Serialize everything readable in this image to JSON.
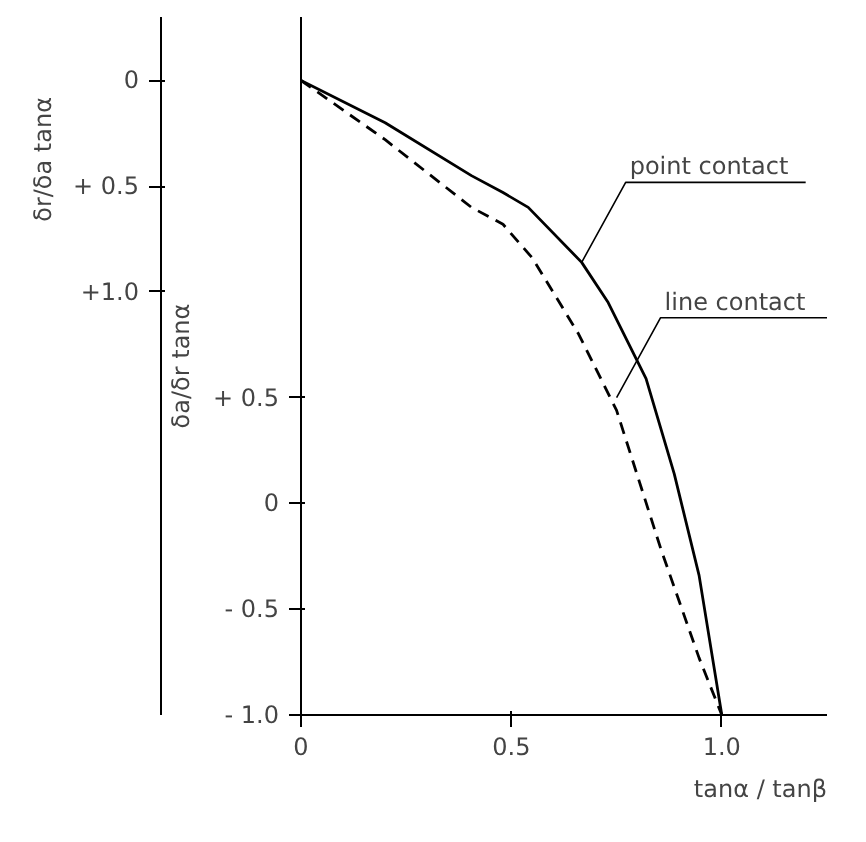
{
  "chart_data": {
    "type": "line",
    "xlabel": "tanα / tanβ",
    "ylabel": "δa/δr tanα",
    "y2label": "δr/δa tanα",
    "xlim": [
      0,
      1.25
    ],
    "xticks": [
      0,
      0.5,
      {
        "value": 1.0,
        "label": "1.0"
      }
    ],
    "ylim": [
      -1.0,
      2.3
    ],
    "yticks": [
      {
        "value": 0.5,
        "label": "+ 0.5"
      },
      0,
      {
        "value": -0.5,
        "label": "- 0.5"
      },
      {
        "value": -1.0,
        "label": "- 1.0"
      }
    ],
    "y2lim": [
      3.0,
      -0.3
    ],
    "y2ticks": [
      0,
      {
        "value": 0.5,
        "label": "+ 0.5"
      },
      {
        "value": 1.0,
        "label": "+1.0"
      }
    ],
    "series": [
      {
        "color": "#000000",
        "line_style": "solid",
        "x": [
          0,
          0.2,
          0.405,
          0.48,
          0.54,
          0.667,
          0.73,
          0.82,
          0.887,
          0.946,
          1.0
        ],
        "values": [
          2.0,
          1.8,
          1.55,
          1.47,
          1.4,
          1.14,
          0.95,
          0.59,
          0.14,
          -0.34,
          -1.0
        ]
      },
      {
        "color": "#000000",
        "line_style": "dashed",
        "x": [
          0,
          0.2,
          0.405,
          0.48,
          0.55,
          0.66,
          0.75,
          0.856,
          0.946,
          1.0
        ],
        "values": [
          2.0,
          1.72,
          1.4,
          1.32,
          1.16,
          0.8,
          0.44,
          -0.22,
          -0.73,
          -1.0
        ]
      }
    ],
    "annotations": [
      {
        "text": "point contact",
        "x": 0.667,
        "y": 1.14
      },
      {
        "text": "line contact",
        "x": 0.75,
        "y": 0.5
      }
    ]
  }
}
